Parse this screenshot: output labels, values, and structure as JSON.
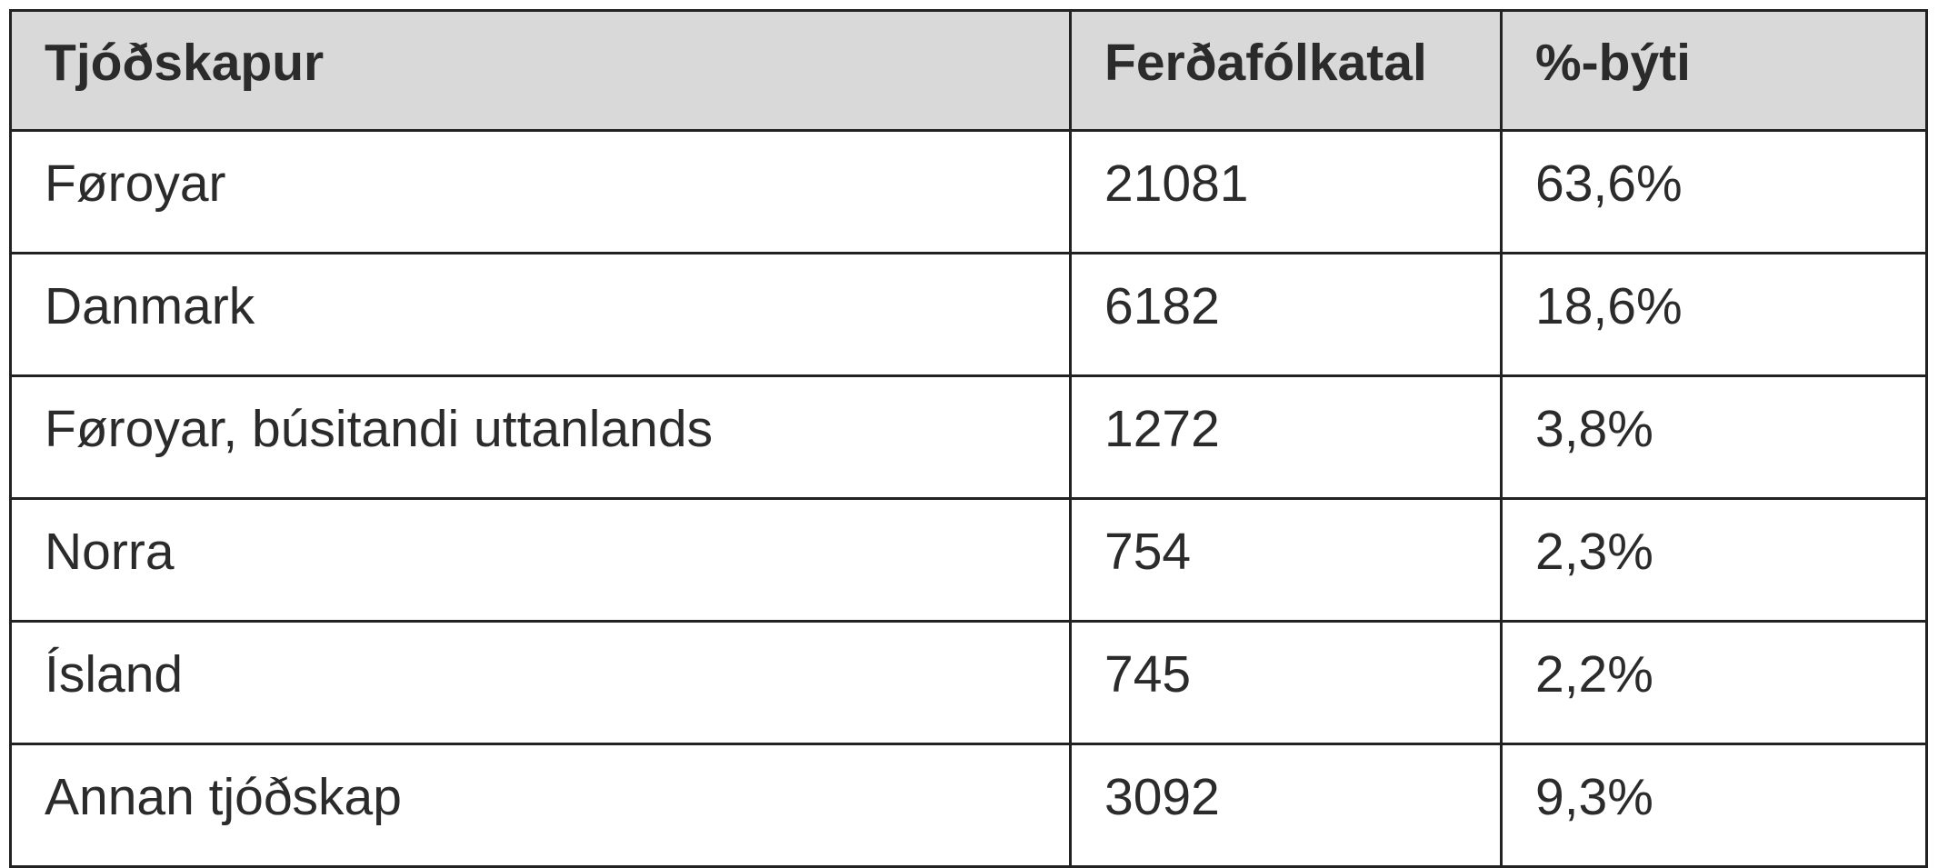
{
  "table": {
    "header": [
      "Tjóðskapur",
      "Ferðafólkatal",
      "%-býti"
    ],
    "rows": [
      [
        "Føroyar",
        "21081",
        "63,6%"
      ],
      [
        "Danmark",
        "6182",
        "18,6%"
      ],
      [
        "Føroyar, búsitandi uttanlands",
        "1272",
        "3,8%"
      ],
      [
        "Norra",
        "754",
        "2,3%"
      ],
      [
        "Ísland",
        "745",
        "2,2%"
      ],
      [
        "Annan tjóðskap",
        "3092",
        "9,3%"
      ]
    ]
  }
}
